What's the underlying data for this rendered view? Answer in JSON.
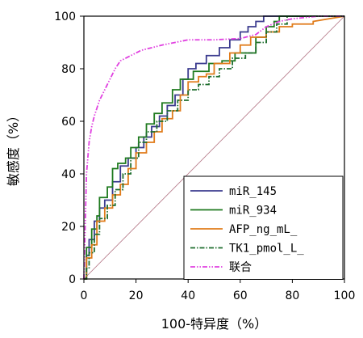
{
  "chart_data": {
    "type": "line",
    "title": "",
    "xlabel": "100-特异度（%）",
    "ylabel": "敏感度（%）",
    "xlim": [
      0,
      100
    ],
    "ylim": [
      0,
      100
    ],
    "xticks": [
      "0",
      "20",
      "40",
      "60",
      "80",
      "100"
    ],
    "yticks": [
      "0",
      "20",
      "40",
      "60",
      "80",
      "100"
    ],
    "grid": false,
    "legend_position": "bottom-right",
    "reference_line": {
      "x": [
        0,
        100
      ],
      "y": [
        0,
        100
      ],
      "color": "#b07080"
    },
    "series": [
      {
        "name": "miR_145",
        "color": "#3b3b8f",
        "dash": "solid",
        "x": [
          0,
          1,
          1,
          2,
          2,
          4,
          4,
          6,
          6,
          8,
          8,
          11,
          11,
          14,
          14,
          17,
          17,
          20,
          20,
          23,
          23,
          26,
          26,
          29,
          29,
          32,
          32,
          35,
          35,
          38,
          38,
          40,
          40,
          43,
          43,
          47,
          47,
          52,
          52,
          56,
          56,
          60,
          60,
          63,
          63,
          66,
          66,
          69,
          69,
          72,
          72,
          100
        ],
        "y": [
          0,
          0,
          9,
          9,
          15,
          15,
          22,
          22,
          27,
          27,
          30,
          30,
          37,
          37,
          43,
          43,
          46,
          46,
          50,
          50,
          54,
          54,
          58,
          58,
          62,
          62,
          66,
          66,
          70,
          70,
          76,
          76,
          80,
          80,
          82,
          82,
          85,
          85,
          88,
          88,
          91,
          91,
          94,
          94,
          96,
          96,
          98,
          98,
          100,
          100,
          100,
          100
        ]
      },
      {
        "name": "miR_934",
        "color": "#1f7a1f",
        "dash": "solid",
        "x": [
          0,
          1,
          1,
          3,
          3,
          5,
          5,
          6,
          6,
          9,
          9,
          11,
          11,
          13,
          13,
          16,
          16,
          18,
          18,
          21,
          21,
          24,
          24,
          27,
          27,
          30,
          30,
          34,
          34,
          37,
          37,
          42,
          42,
          48,
          48,
          53,
          53,
          58,
          58,
          66,
          66,
          70,
          70,
          73,
          73,
          75,
          75,
          100
        ],
        "y": [
          0,
          0,
          12,
          12,
          19,
          19,
          24,
          24,
          31,
          31,
          35,
          35,
          42,
          42,
          44,
          44,
          46,
          46,
          50,
          50,
          54,
          54,
          59,
          59,
          63,
          63,
          67,
          67,
          72,
          72,
          76,
          76,
          79,
          79,
          82,
          82,
          83,
          83,
          86,
          86,
          92,
          92,
          96,
          96,
          98,
          98,
          100,
          100
        ]
      },
      {
        "name": "AFP_ng_mL_",
        "color": "#e07b1a",
        "dash": "solid",
        "x": [
          0,
          1,
          1,
          3,
          3,
          5,
          5,
          8,
          8,
          11,
          11,
          14,
          14,
          17,
          17,
          20,
          20,
          24,
          24,
          27,
          27,
          30,
          30,
          34,
          34,
          37,
          37,
          40,
          40,
          44,
          44,
          47,
          47,
          50,
          50,
          56,
          56,
          60,
          60,
          64,
          64,
          70,
          70,
          75,
          75,
          80,
          80,
          88,
          88,
          100
        ],
        "y": [
          0,
          0,
          8,
          8,
          13,
          13,
          22,
          22,
          27,
          27,
          32,
          32,
          36,
          36,
          42,
          42,
          48,
          48,
          52,
          52,
          56,
          56,
          61,
          61,
          64,
          64,
          70,
          70,
          75,
          75,
          77,
          77,
          78,
          78,
          82,
          82,
          86,
          86,
          89,
          89,
          92,
          92,
          94,
          94,
          96,
          96,
          97,
          97,
          98,
          100
        ]
      },
      {
        "name": "TK1_pmol_L_",
        "color": "#1f6e2e",
        "dash": "dashdot",
        "x": [
          0,
          1,
          1,
          2,
          2,
          4,
          4,
          6,
          6,
          9,
          9,
          12,
          12,
          15,
          15,
          18,
          18,
          21,
          21,
          24,
          24,
          28,
          28,
          32,
          32,
          36,
          36,
          40,
          40,
          44,
          44,
          48,
          48,
          52,
          52,
          57,
          57,
          62,
          62,
          66,
          66,
          70,
          70,
          74,
          74,
          78,
          78,
          100
        ],
        "y": [
          0,
          0,
          4,
          4,
          10,
          10,
          17,
          17,
          23,
          23,
          28,
          28,
          34,
          34,
          40,
          40,
          46,
          46,
          52,
          52,
          56,
          56,
          60,
          60,
          64,
          64,
          68,
          68,
          72,
          72,
          74,
          74,
          77,
          77,
          80,
          80,
          84,
          84,
          86,
          86,
          90,
          90,
          94,
          94,
          97,
          97,
          100,
          100
        ]
      },
      {
        "name": "联合",
        "color": "#e040e0",
        "dash": "dashdotdot",
        "x": [
          0,
          0.5,
          1,
          2,
          3,
          4,
          6,
          8,
          10,
          12,
          14,
          18,
          22,
          26,
          30,
          35,
          40,
          50,
          60,
          66,
          70,
          75,
          80,
          90,
          100
        ],
        "y": [
          0,
          20,
          40,
          52,
          58,
          62,
          68,
          72,
          76,
          80,
          83,
          85,
          87,
          88,
          89,
          90,
          91,
          91,
          91.5,
          93,
          96,
          98,
          99,
          100,
          100
        ]
      }
    ]
  }
}
